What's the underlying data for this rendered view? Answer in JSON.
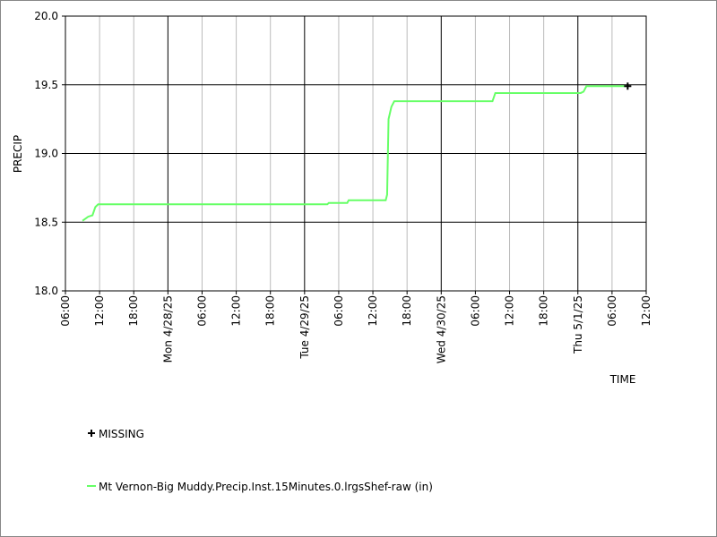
{
  "chart_data": {
    "type": "line",
    "x_label": "TIME",
    "y_label": "PRECIP",
    "xlim": [
      "2025-04-27T06:00",
      "2025-05-01T12:00"
    ],
    "ylim": [
      18,
      20
    ],
    "yticks": [
      {
        "value": 18,
        "label": "18.0"
      },
      {
        "value": 18.5,
        "label": "18.5"
      },
      {
        "value": 19,
        "label": "19.0"
      },
      {
        "value": 19.5,
        "label": "19.5"
      },
      {
        "value": 20,
        "label": "20.0"
      }
    ],
    "xticks": [
      {
        "value": "2025-04-27T06:00",
        "label": "06:00"
      },
      {
        "value": "2025-04-27T12:00",
        "label": "12:00"
      },
      {
        "value": "2025-04-27T18:00",
        "label": "18:00"
      },
      {
        "value": "2025-04-28T00:00",
        "label": "Mon 4/28/25"
      },
      {
        "value": "2025-04-28T06:00",
        "label": "06:00"
      },
      {
        "value": "2025-04-28T12:00",
        "label": "12:00"
      },
      {
        "value": "2025-04-28T18:00",
        "label": "18:00"
      },
      {
        "value": "2025-04-29T00:00",
        "label": "Tue 4/29/25"
      },
      {
        "value": "2025-04-29T06:00",
        "label": "06:00"
      },
      {
        "value": "2025-04-29T12:00",
        "label": "12:00"
      },
      {
        "value": "2025-04-29T18:00",
        "label": "18:00"
      },
      {
        "value": "2025-04-30T00:00",
        "label": "Wed 4/30/25"
      },
      {
        "value": "2025-04-30T06:00",
        "label": "06:00"
      },
      {
        "value": "2025-04-30T12:00",
        "label": "12:00"
      },
      {
        "value": "2025-04-30T18:00",
        "label": "18:00"
      },
      {
        "value": "2025-05-01T00:00",
        "label": "Thu 5/1/25"
      },
      {
        "value": "2025-05-01T06:00",
        "label": "06:00"
      },
      {
        "value": "2025-05-01T12:00",
        "label": "12:00"
      }
    ],
    "grid": true,
    "series": [
      {
        "name": "MISSING",
        "color": "#000000",
        "marker": "plus",
        "x": [
          "2025-05-01T08:45"
        ],
        "values": [
          19.49
        ]
      },
      {
        "name": "Mt Vernon-Big Muddy.Precip.Inst.15Minutes.0.lrgsShef-raw (in)",
        "color": "#66ff66",
        "marker": "line",
        "x": [
          "2025-04-27T09:00",
          "2025-04-27T10:00",
          "2025-04-27T10:45",
          "2025-04-27T11:15",
          "2025-04-27T11:45",
          "2025-04-29T04:00",
          "2025-04-29T04:15",
          "2025-04-29T07:30",
          "2025-04-29T07:45",
          "2025-04-29T14:15",
          "2025-04-29T14:30",
          "2025-04-29T14:45",
          "2025-04-29T15:15",
          "2025-04-29T15:45",
          "2025-04-30T09:00",
          "2025-04-30T09:30",
          "2025-05-01T00:30",
          "2025-05-01T01:00",
          "2025-05-01T01:30",
          "2025-05-01T08:45"
        ],
        "values": [
          18.51,
          18.54,
          18.55,
          18.61,
          18.63,
          18.63,
          18.64,
          18.64,
          18.66,
          18.66,
          18.7,
          19.25,
          19.34,
          19.38,
          19.38,
          19.44,
          19.44,
          19.45,
          19.49,
          19.49
        ]
      }
    ]
  }
}
